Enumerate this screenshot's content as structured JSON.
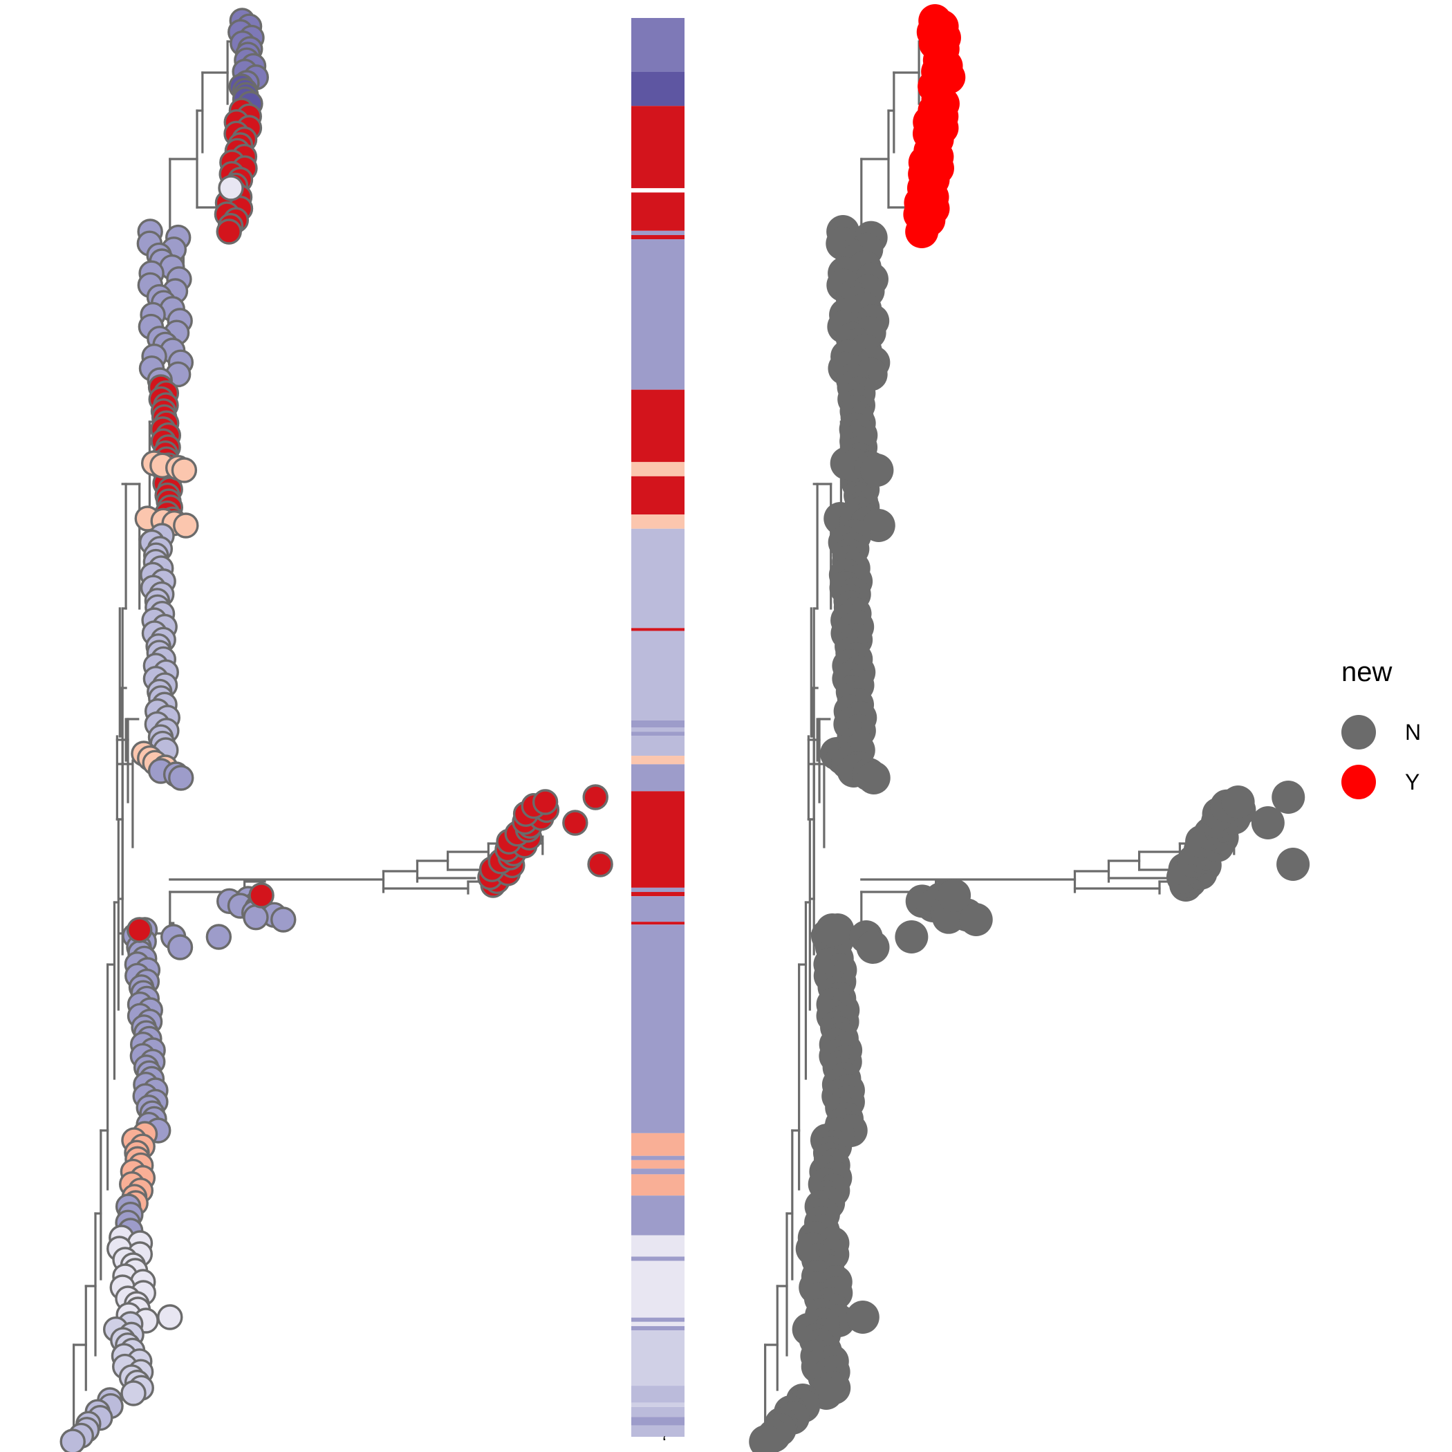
{
  "colors": {
    "branch": "#6b6b6b",
    "outline": "#6b6b6b",
    "class_dark": "#5e56a2",
    "class_mid": "#7e79b7",
    "class_main": "#9d9cca",
    "class_light": "#bbbbdb",
    "class_lighter": "#d0d0e6",
    "class_pale": "#e8e6f2",
    "class_red": "#d3141c",
    "class_peach": "#fbc6ae",
    "class_salmon": "#f9af96"
  },
  "heatmap_bands": [
    [
      "class_mid",
      0.0,
      0.038
    ],
    [
      "class_dark",
      0.038,
      0.062
    ],
    [
      "class_red",
      0.062,
      0.12
    ],
    [
      "white",
      0.12,
      0.123
    ],
    [
      "class_red",
      0.123,
      0.15
    ],
    [
      "class_main",
      0.15,
      0.153
    ],
    [
      "class_red",
      0.153,
      0.156
    ],
    [
      "class_main",
      0.156,
      0.262
    ],
    [
      "class_red",
      0.262,
      0.313
    ],
    [
      "class_peach",
      0.313,
      0.323
    ],
    [
      "class_red",
      0.323,
      0.35
    ],
    [
      "class_peach",
      0.35,
      0.36
    ],
    [
      "class_light",
      0.36,
      0.43
    ],
    [
      "class_red",
      0.43,
      0.432
    ],
    [
      "class_light",
      0.432,
      0.495
    ],
    [
      "class_main",
      0.495,
      0.5
    ],
    [
      "class_light",
      0.5,
      0.503
    ],
    [
      "class_main",
      0.503,
      0.506
    ],
    [
      "class_light",
      0.506,
      0.52
    ],
    [
      "class_peach",
      0.52,
      0.526
    ],
    [
      "class_main",
      0.526,
      0.545
    ],
    [
      "class_red",
      0.545,
      0.613
    ],
    [
      "class_main",
      0.613,
      0.616
    ],
    [
      "class_red",
      0.616,
      0.619
    ],
    [
      "class_main",
      0.619,
      0.637
    ],
    [
      "class_red",
      0.637,
      0.639
    ],
    [
      "class_main",
      0.639,
      0.786
    ],
    [
      "class_salmon",
      0.786,
      0.802
    ],
    [
      "class_main",
      0.802,
      0.805
    ],
    [
      "class_salmon",
      0.805,
      0.811
    ],
    [
      "class_main",
      0.811,
      0.815
    ],
    [
      "class_salmon",
      0.815,
      0.83
    ],
    [
      "class_main",
      0.83,
      0.858
    ],
    [
      "class_pale",
      0.858,
      0.873
    ],
    [
      "class_main",
      0.873,
      0.876
    ],
    [
      "class_pale",
      0.876,
      0.916
    ],
    [
      "class_main",
      0.916,
      0.919
    ],
    [
      "class_pale",
      0.919,
      0.922
    ],
    [
      "class_main",
      0.922,
      0.925
    ],
    [
      "class_lighter",
      0.925,
      0.964
    ],
    [
      "class_light",
      0.964,
      0.976
    ],
    [
      "class_lighter",
      0.976,
      0.979
    ],
    [
      "class_light",
      0.979,
      0.986
    ],
    [
      "class_main",
      0.986,
      0.992
    ],
    [
      "class_light",
      0.992,
      1.0
    ]
  ],
  "legend": {
    "title": "new",
    "items": [
      {
        "label": "N",
        "color": "#6b6b6b"
      },
      {
        "label": "Y",
        "color": "#ff0000"
      }
    ]
  },
  "heatmap_footer_mark": "ʻ"
}
